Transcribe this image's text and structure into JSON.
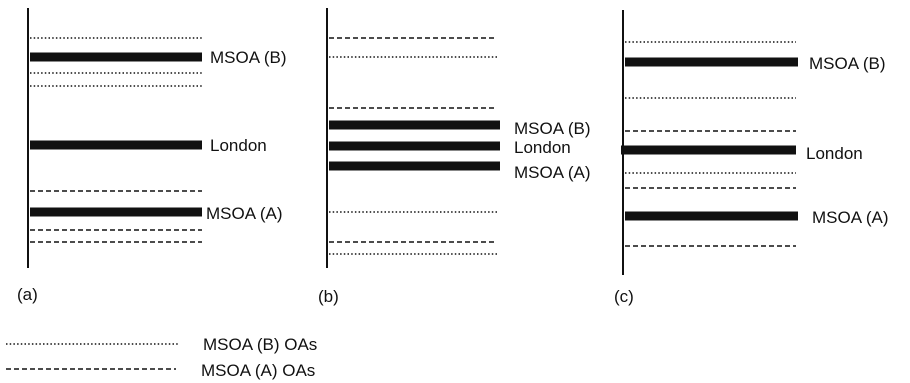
{
  "panels": [
    {
      "id": "a",
      "label": "(a)",
      "lines": [
        {
          "style": "dotted"
        },
        {
          "style": "thick",
          "label": "MSOA (B)"
        },
        {
          "style": "dotted"
        },
        {
          "style": "dotted"
        },
        {
          "style": "thick",
          "label": "London"
        },
        {
          "style": "dashed"
        },
        {
          "style": "thick",
          "label": "MSOA (A)"
        },
        {
          "style": "dashed"
        },
        {
          "style": "dashed"
        }
      ]
    },
    {
      "id": "b",
      "label": "(b)",
      "lines": [
        {
          "style": "dashed"
        },
        {
          "style": "dotted"
        },
        {
          "style": "dashed"
        },
        {
          "style": "thick",
          "label": "MSOA (B)"
        },
        {
          "style": "thick",
          "label": "London"
        },
        {
          "style": "thick",
          "label": "MSOA (A)"
        },
        {
          "style": "dotted"
        },
        {
          "style": "dashed"
        },
        {
          "style": "dotted"
        }
      ]
    },
    {
      "id": "c",
      "label": "(c)",
      "lines": [
        {
          "style": "dotted"
        },
        {
          "style": "thick",
          "label": "MSOA (B)"
        },
        {
          "style": "dotted"
        },
        {
          "style": "dashed"
        },
        {
          "style": "thick",
          "label": "London"
        },
        {
          "style": "dotted"
        },
        {
          "style": "dashed"
        },
        {
          "style": "thick",
          "label": "MSOA (A)"
        },
        {
          "style": "dashed"
        }
      ]
    }
  ],
  "legend": [
    {
      "style": "dotted",
      "label": "MSOA (B) OAs"
    },
    {
      "style": "dashed",
      "label": "MSOA (A) OAs"
    }
  ]
}
